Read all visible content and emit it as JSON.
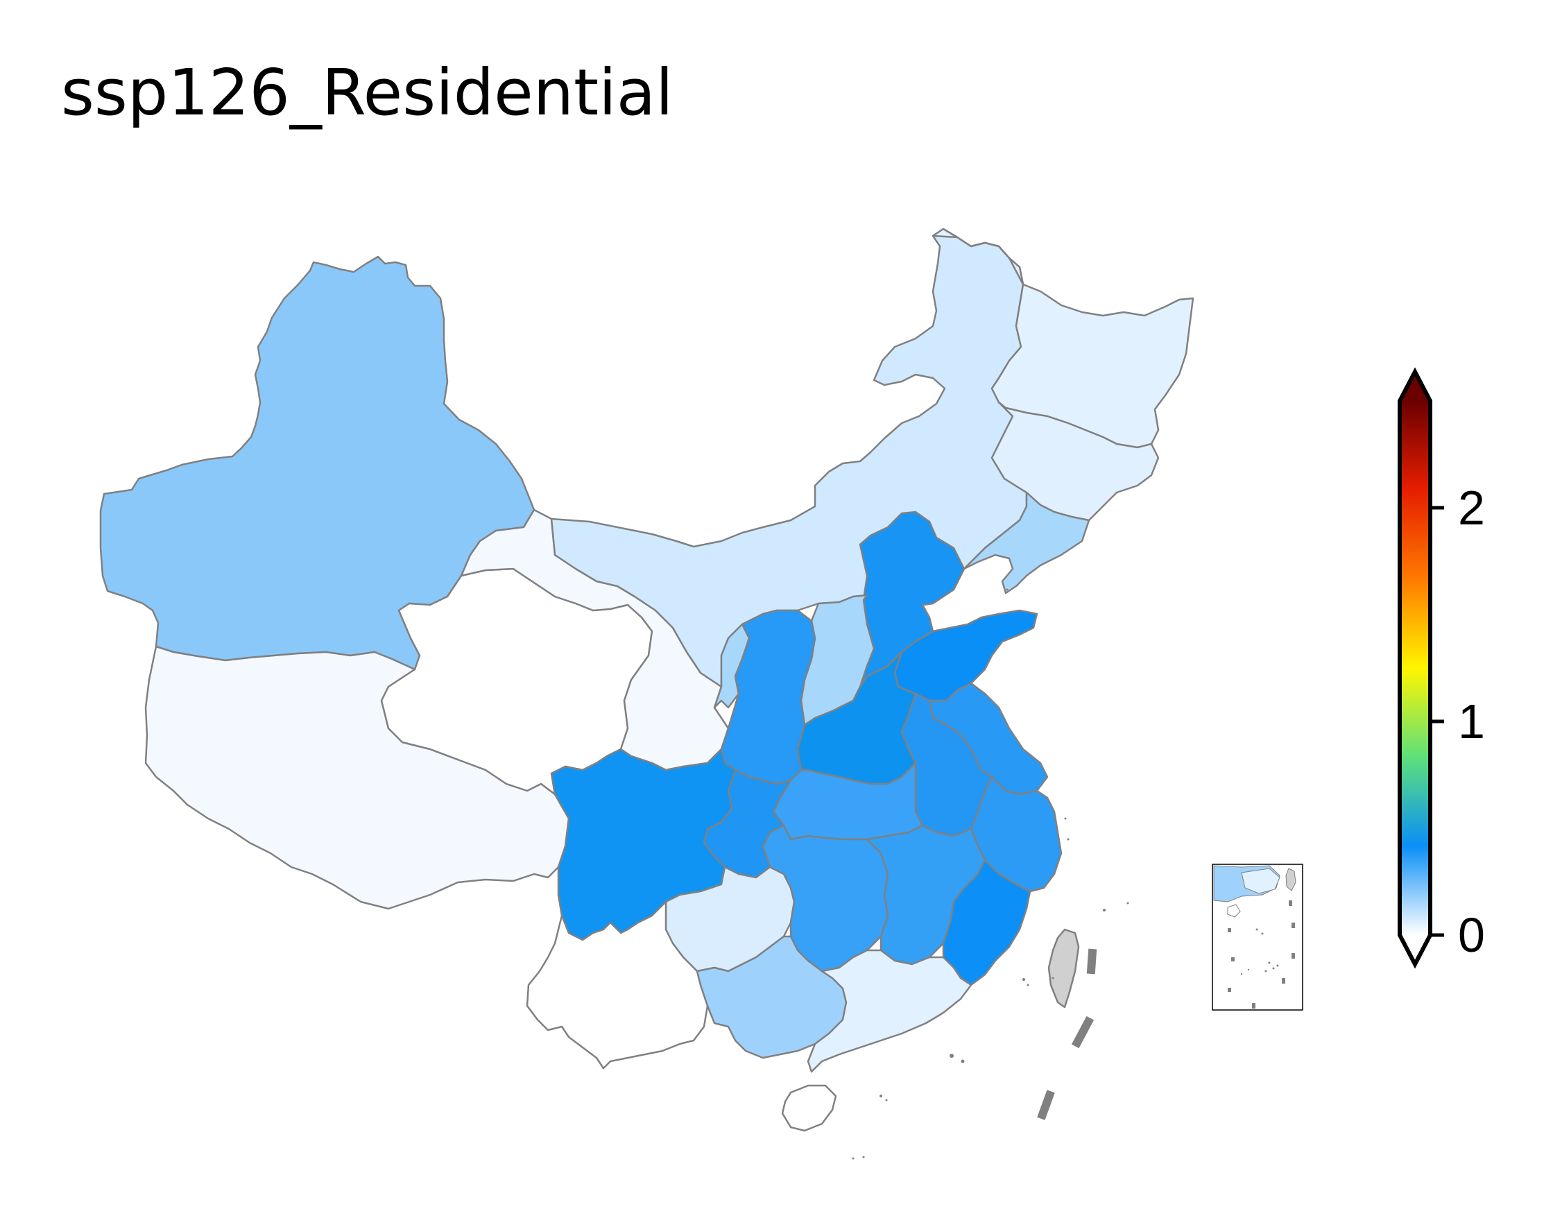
{
  "title": "ssp126_Residential",
  "colorbar": {
    "ticks": [
      {
        "value": 0,
        "label": "0"
      },
      {
        "value": 1,
        "label": "1"
      },
      {
        "value": 2,
        "label": "2"
      }
    ],
    "range": [
      0,
      2.5
    ],
    "extend": "both",
    "colormap_stops": [
      "#ffffff",
      "#0a8ff7",
      "#5ee07a",
      "#fff500",
      "#ff7a00",
      "#e61e00",
      "#6b0000"
    ],
    "placement": "right"
  },
  "regions": [
    {
      "name": "Xinjiang",
      "value": 0.22
    },
    {
      "name": "Tibet",
      "value": 0.02
    },
    {
      "name": "Qinghai",
      "value": 0.0
    },
    {
      "name": "Gansu",
      "value": 0.02
    },
    {
      "name": "Inner Mongolia",
      "value": 0.08
    },
    {
      "name": "Heilongjiang",
      "value": 0.05
    },
    {
      "name": "Jilin",
      "value": 0.06
    },
    {
      "name": "Liaoning",
      "value": 0.16
    },
    {
      "name": "Hebei",
      "value": 0.4
    },
    {
      "name": "Shanxi",
      "value": 0.16
    },
    {
      "name": "Shaanxi",
      "value": 0.36
    },
    {
      "name": "Ningxia",
      "value": 0.15
    },
    {
      "name": "Shandong",
      "value": 0.46
    },
    {
      "name": "Henan",
      "value": 0.44
    },
    {
      "name": "Jiangsu",
      "value": 0.37
    },
    {
      "name": "Anhui",
      "value": 0.4
    },
    {
      "name": "Hubei",
      "value": 0.34
    },
    {
      "name": "Sichuan",
      "value": 0.42
    },
    {
      "name": "Chongqing",
      "value": 0.4
    },
    {
      "name": "Zhejiang",
      "value": 0.36
    },
    {
      "name": "Hunan",
      "value": 0.32
    },
    {
      "name": "Jiangxi",
      "value": 0.34
    },
    {
      "name": "Fujian",
      "value": 0.45
    },
    {
      "name": "Guizhou",
      "value": 0.08
    },
    {
      "name": "Yunnan",
      "value": 0.0
    },
    {
      "name": "Guangxi",
      "value": 0.18
    },
    {
      "name": "Guangdong",
      "value": 0.04
    },
    {
      "name": "Hainan",
      "value": 0.0
    }
  ],
  "colors": {
    "border": "#808080",
    "taiwan": "#d0d0d0",
    "dashes": "#808080"
  }
}
